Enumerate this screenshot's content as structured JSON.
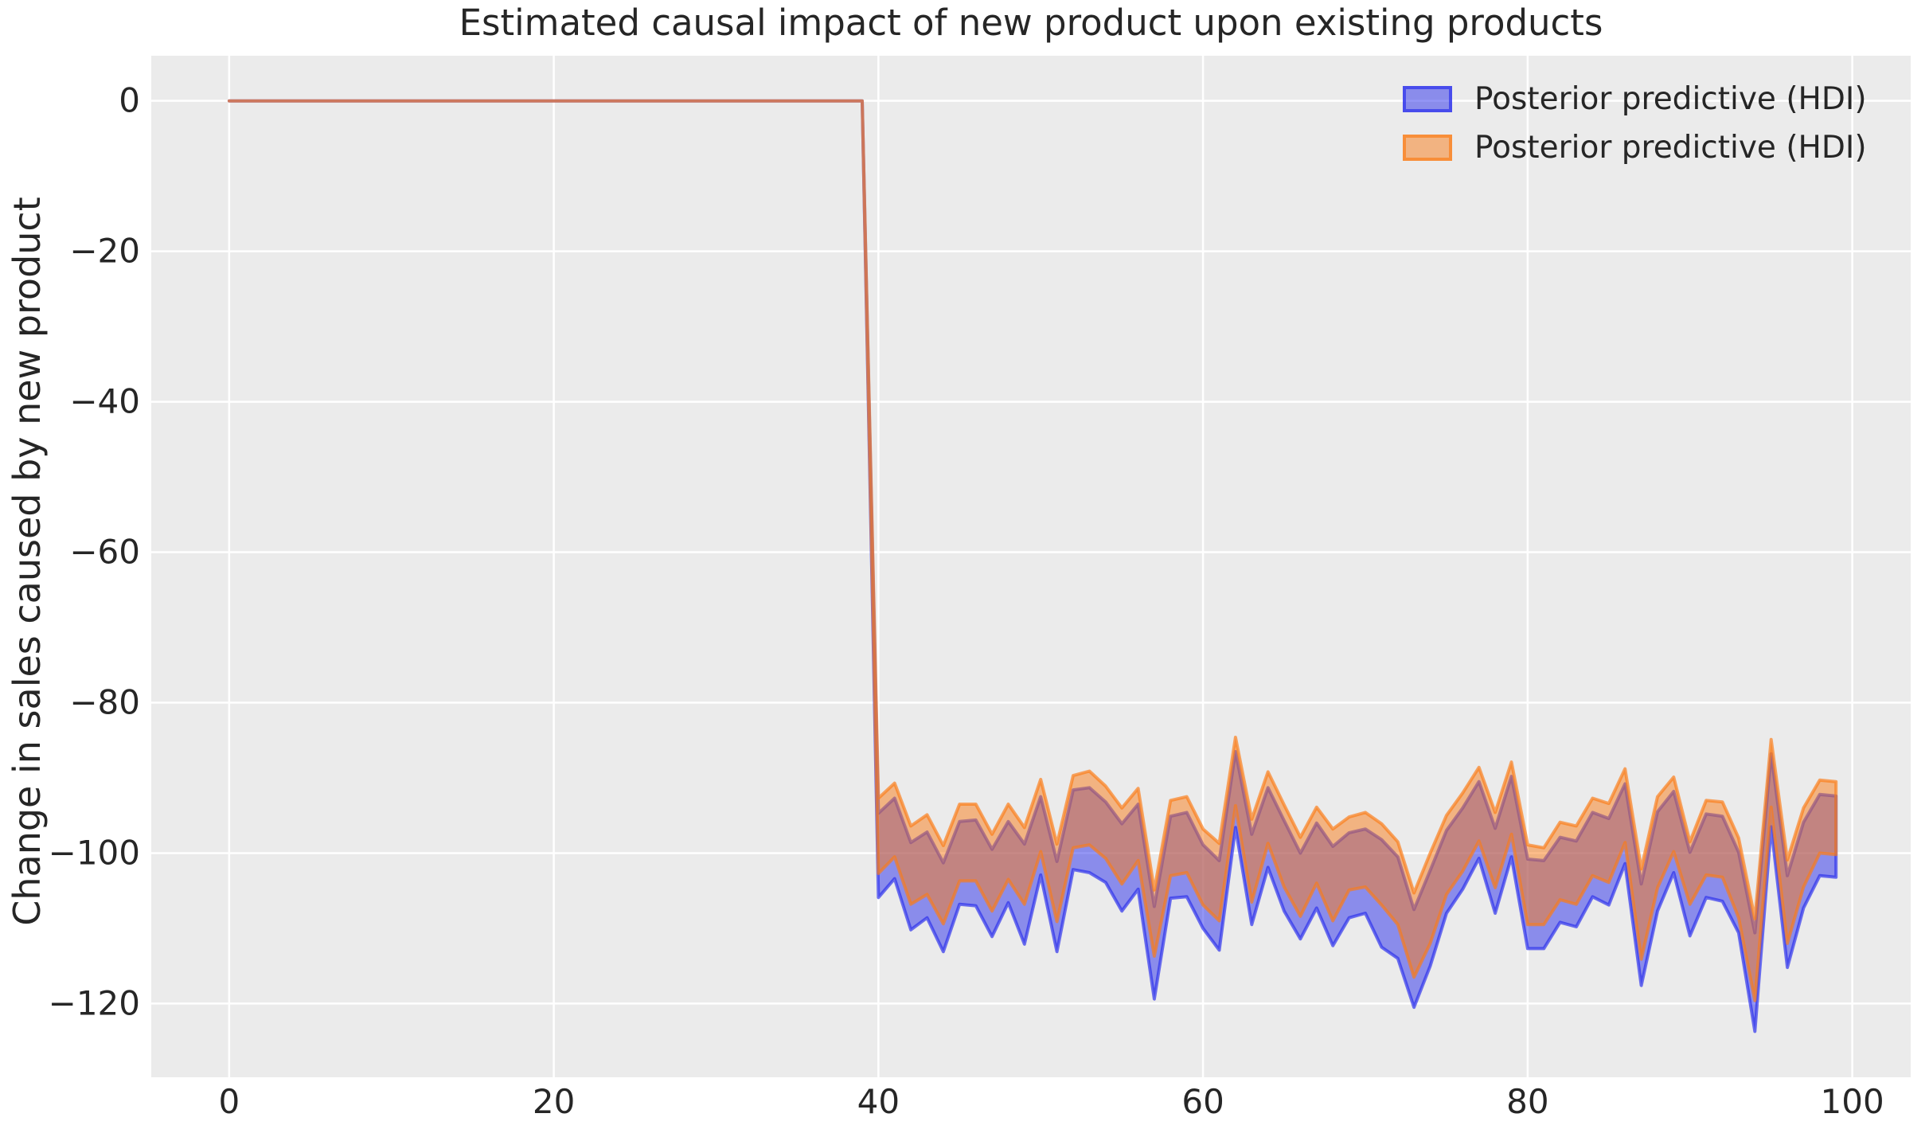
{
  "figure": {
    "title": "Estimated causal impact of new product upon existing products",
    "y_axis_label": "Change in sales caused by new product"
  },
  "legend": {
    "items": [
      {
        "label": "Posterior predictive (HDI)",
        "color": "#2a2eec"
      },
      {
        "label": "Posterior predictive (HDI)",
        "color": "#fa7c17"
      }
    ]
  },
  "chart_data": {
    "type": "area",
    "title": "Estimated causal impact of new product upon existing products",
    "xlabel": "",
    "ylabel": "Change in sales caused by new product",
    "x_ticks": [
      0,
      20,
      40,
      60,
      80,
      100
    ],
    "y_ticks": [
      0,
      -20,
      -40,
      -60,
      -80,
      -100,
      -120
    ],
    "xlim": [
      -4.8,
      103.6
    ],
    "ylim": [
      -129.8,
      6.0
    ],
    "grid": true,
    "legend_position": "upper right",
    "pre_period": {
      "x_start": 0,
      "x_end": 39,
      "value": 0
    },
    "post_period_x_start": 40,
    "series": [
      {
        "name": "Posterior predictive (HDI)",
        "band_color": "#2a2eec",
        "upper": [
          -94.7,
          -92.7,
          -98.6,
          -97.2,
          -101.3,
          -95.8,
          -95.6,
          -99.5,
          -95.8,
          -98.8,
          -92.5,
          -101.1,
          -91.6,
          -91.3,
          -93.2,
          -96.1,
          -93.5,
          -107.1,
          -95.1,
          -94.6,
          -98.9,
          -101.0,
          -86.5,
          -97.5,
          -91.3,
          -95.7,
          -100.0,
          -96.0,
          -99.1,
          -97.3,
          -96.8,
          -98.2,
          -100.5,
          -107.5,
          -102.3,
          -97.0,
          -94.0,
          -90.5,
          -96.7,
          -89.8,
          -100.8,
          -101.0,
          -97.9,
          -98.4,
          -94.6,
          -95.4,
          -90.8,
          -104.1,
          -94.5,
          -91.8,
          -99.9,
          -94.8,
          -95.1,
          -99.9,
          -110.6,
          -86.8,
          -103.0,
          -95.9,
          -92.2,
          -92.4
        ],
        "lower": [
          -105.9,
          -103.4,
          -110.2,
          -108.6,
          -113.1,
          -106.8,
          -107.0,
          -111.1,
          -106.6,
          -112.1,
          -102.9,
          -113.1,
          -102.2,
          -102.6,
          -103.9,
          -107.7,
          -104.8,
          -119.4,
          -106.0,
          -105.8,
          -110.0,
          -112.9,
          -96.6,
          -109.5,
          -101.9,
          -107.7,
          -111.4,
          -107.3,
          -112.3,
          -108.6,
          -108.0,
          -112.5,
          -114.0,
          -120.5,
          -115.0,
          -108.0,
          -104.8,
          -100.7,
          -108.0,
          -100.5,
          -112.7,
          -112.7,
          -109.2,
          -109.8,
          -105.8,
          -106.9,
          -101.4,
          -117.6,
          -107.7,
          -102.6,
          -111.0,
          -105.9,
          -106.4,
          -110.6,
          -123.7,
          -96.5,
          -115.2,
          -107.3,
          -103.0,
          -103.2
        ]
      },
      {
        "name": "Posterior predictive (HDI)",
        "band_color": "#fa7c17",
        "upper": [
          -92.7,
          -90.7,
          -96.4,
          -94.9,
          -99.0,
          -93.5,
          -93.5,
          -97.5,
          -93.5,
          -96.6,
          -90.2,
          -98.8,
          -89.7,
          -89.1,
          -91.1,
          -94.0,
          -91.4,
          -104.9,
          -93.0,
          -92.5,
          -96.8,
          -98.7,
          -84.6,
          -95.5,
          -89.2,
          -93.6,
          -97.9,
          -93.9,
          -96.8,
          -95.2,
          -94.6,
          -96.1,
          -98.5,
          -105.3,
          -100.0,
          -95.0,
          -92.0,
          -88.6,
          -94.6,
          -87.9,
          -98.9,
          -99.3,
          -95.9,
          -96.4,
          -92.7,
          -93.4,
          -88.8,
          -102.1,
          -92.5,
          -89.9,
          -98.5,
          -93.0,
          -93.2,
          -98.0,
          -108.7,
          -84.9,
          -100.9,
          -94.0,
          -90.3,
          -90.5
        ],
        "lower": [
          -102.7,
          -100.5,
          -106.8,
          -105.5,
          -109.4,
          -103.7,
          -103.7,
          -107.7,
          -103.5,
          -106.8,
          -99.8,
          -109.1,
          -99.3,
          -98.9,
          -100.7,
          -104.1,
          -101.0,
          -113.7,
          -103.0,
          -102.6,
          -106.9,
          -109.0,
          -93.7,
          -106.5,
          -98.7,
          -104.5,
          -108.4,
          -104.0,
          -109.0,
          -104.9,
          -104.5,
          -106.9,
          -109.5,
          -116.5,
          -112.0,
          -105.5,
          -102.4,
          -98.4,
          -104.6,
          -97.5,
          -109.5,
          -109.5,
          -106.2,
          -106.8,
          -103.0,
          -103.9,
          -98.6,
          -114.1,
          -104.6,
          -99.8,
          -106.8,
          -102.9,
          -103.2,
          -108.6,
          -119.6,
          -93.9,
          -112.0,
          -104.5,
          -100.0,
          -100.2
        ]
      }
    ],
    "styles": {
      "plot_bg": "#ebebeb",
      "grid_color": "#ffffff",
      "text_color": "#262626",
      "fill_alpha": 0.5,
      "edge_alpha": 0.68
    }
  }
}
